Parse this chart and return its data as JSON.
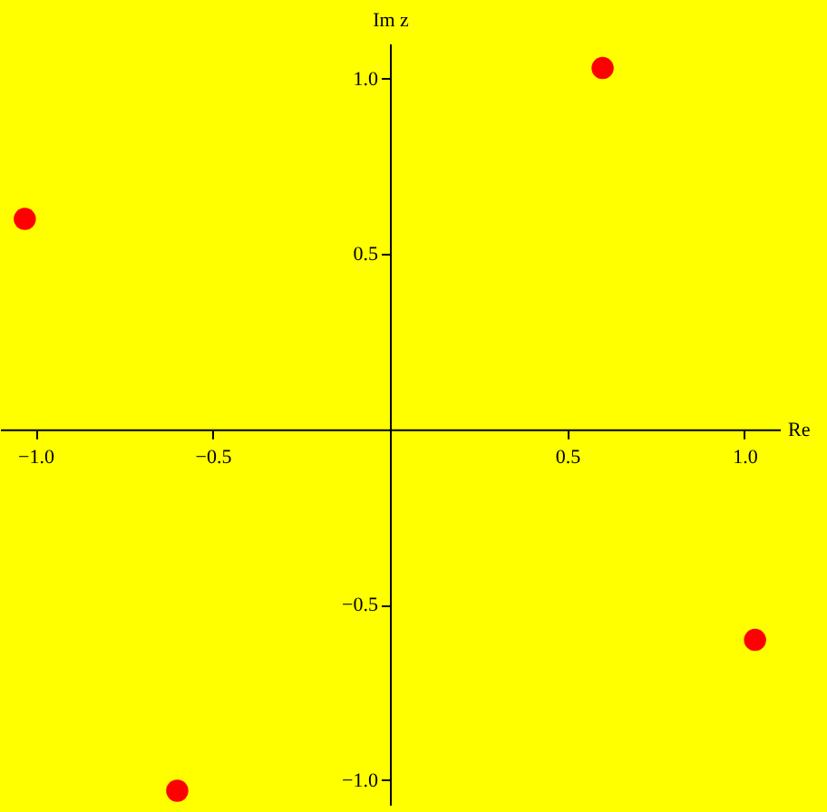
{
  "chart_data": {
    "type": "scatter",
    "xlabel": "Re",
    "ylabel": "Im z",
    "x": [
      0.6,
      -1.03,
      -0.6,
      1.03
    ],
    "series": [
      {
        "color": "#ff0000",
        "values": [
          1.03,
          0.6,
          -1.03,
          -0.6
        ]
      }
    ],
    "xlim": [
      -1.1,
      1.1
    ],
    "ylim": [
      -1.07,
      1.1
    ],
    "xticks": [
      {
        "value": -1.0,
        "label": "−1.0"
      },
      {
        "value": -0.5,
        "label": "−0.5"
      },
      0.5,
      {
        "value": 1.0,
        "label": "1.0"
      }
    ],
    "yticks": [
      {
        "value": -1.0,
        "label": "−1.0"
      },
      {
        "value": -0.5,
        "label": "−0.5"
      },
      0.5,
      {
        "value": 1.0,
        "label": "1.0"
      }
    ],
    "grid": false,
    "legend": false,
    "marker": "circle"
  }
}
